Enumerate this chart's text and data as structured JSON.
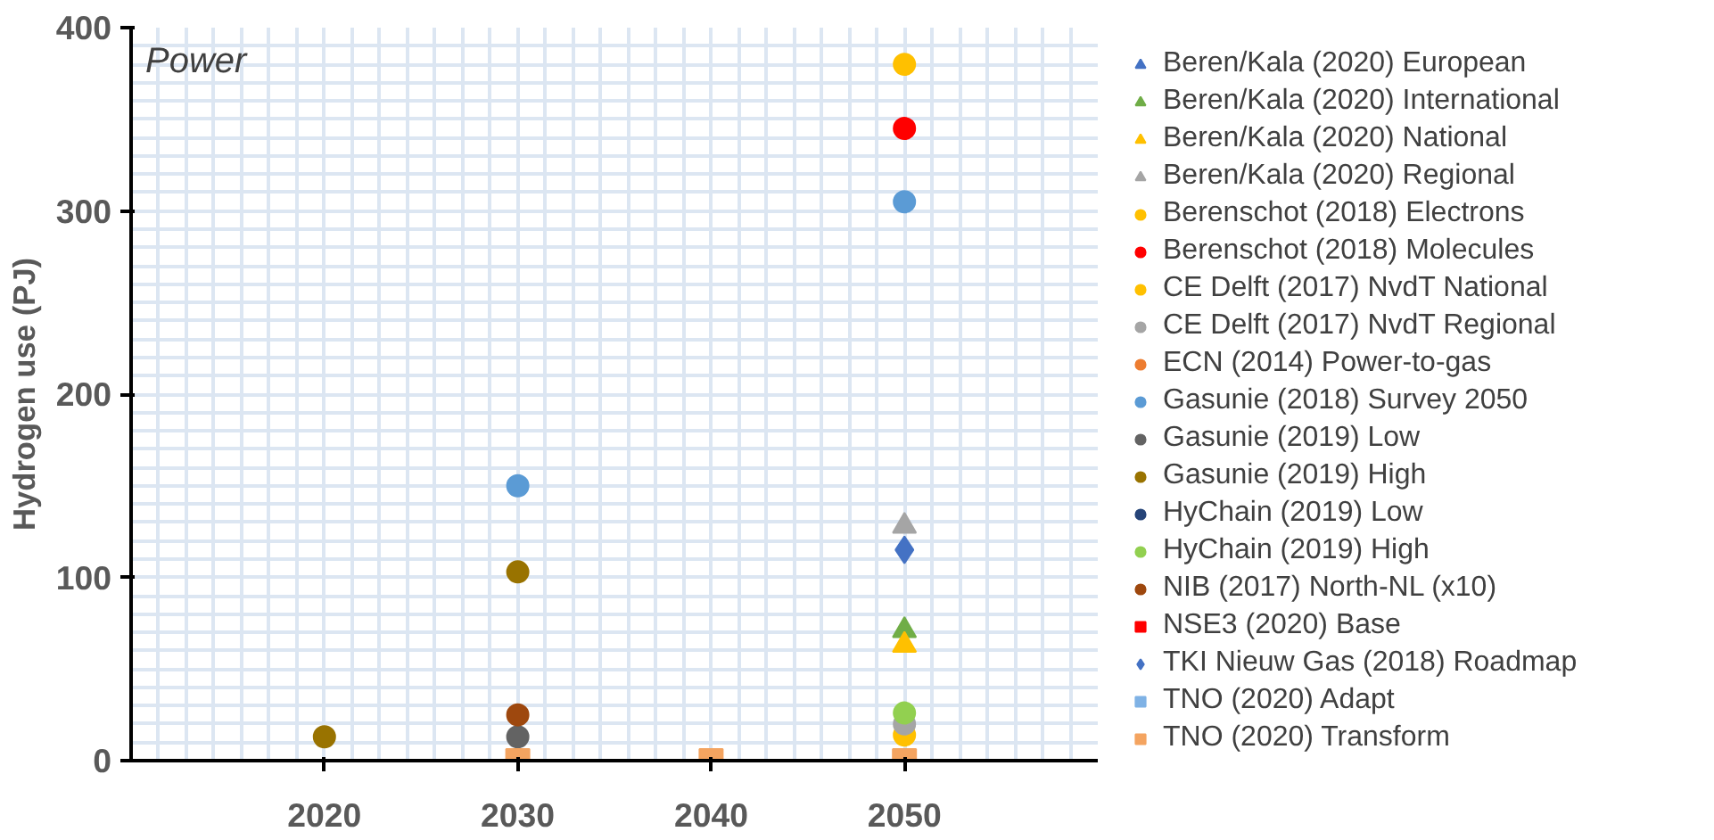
{
  "chart_data": {
    "type": "scatter",
    "ylabel": "Hydrogen use (PJ)",
    "annotations": [
      "Power"
    ],
    "x": [
      2020,
      2030,
      2040,
      2050
    ],
    "xlim": [
      2010,
      2060
    ],
    "xticks": [
      2020,
      2030,
      2040,
      2050
    ],
    "ylim": [
      0,
      400
    ],
    "yticks": [
      0,
      100,
      200,
      300,
      400
    ],
    "grid": true,
    "legend": "right",
    "series": [
      {
        "name": "Beren/Kala (2020) European",
        "color": "#4472c4",
        "marker": "triangle",
        "values": [
          null,
          null,
          null,
          null
        ]
      },
      {
        "name": "Beren/Kala (2020) International",
        "color": "#70ad47",
        "marker": "triangle",
        "values": [
          null,
          null,
          null,
          71
        ]
      },
      {
        "name": "Beren/Kala (2020) National",
        "color": "#ffc000",
        "marker": "triangle",
        "values": [
          null,
          null,
          null,
          63
        ]
      },
      {
        "name": "Beren/Kala (2020) Regional",
        "color": "#a5a5a5",
        "marker": "triangle",
        "values": [
          null,
          null,
          null,
          128
        ]
      },
      {
        "name": "Berenschot (2018) Electrons",
        "color": "#ffc000",
        "marker": "circle",
        "values": [
          null,
          null,
          null,
          380
        ]
      },
      {
        "name": "Berenschot (2018) Molecules",
        "color": "#ff0000",
        "marker": "circle",
        "values": [
          null,
          null,
          null,
          345
        ]
      },
      {
        "name": "CE Delft (2017) NvdT National",
        "color": "#ffc000",
        "marker": "circle",
        "values": [
          null,
          null,
          null,
          14
        ]
      },
      {
        "name": "CE Delft (2017) NvdT Regional",
        "color": "#a5a5a5",
        "marker": "circle",
        "values": [
          null,
          null,
          null,
          20
        ]
      },
      {
        "name": "ECN (2014) Power-to-gas",
        "color": "#ed7d31",
        "marker": "circle",
        "values": [
          null,
          null,
          null,
          null
        ]
      },
      {
        "name": "Gasunie (2018) Survey 2050",
        "color": "#5b9bd5",
        "marker": "circle",
        "values": [
          null,
          150,
          null,
          305
        ]
      },
      {
        "name": "Gasunie (2019) Low",
        "color": "#636363",
        "marker": "circle",
        "values": [
          null,
          13,
          null,
          null
        ]
      },
      {
        "name": "Gasunie (2019) High",
        "color": "#997300",
        "marker": "circle",
        "values": [
          13,
          103,
          null,
          null
        ]
      },
      {
        "name": "HyChain (2019) Low",
        "color": "#264478",
        "marker": "circle",
        "values": [
          null,
          null,
          null,
          null
        ]
      },
      {
        "name": "HyChain (2019) High",
        "color": "#92d050",
        "marker": "circle",
        "values": [
          null,
          null,
          null,
          26
        ]
      },
      {
        "name": "NIB (2017) North-NL (x10)",
        "color": "#9e480e",
        "marker": "circle",
        "values": [
          null,
          25,
          null,
          null
        ]
      },
      {
        "name": "NSE3 (2020) Base",
        "color": "#ff0000",
        "marker": "square",
        "values": [
          null,
          null,
          null,
          null
        ]
      },
      {
        "name": "TKI Nieuw Gas (2018) Roadmap",
        "color": "#4472c4",
        "marker": "diamond",
        "values": [
          null,
          null,
          null,
          115
        ]
      },
      {
        "name": "TNO (2020) Adapt",
        "color": "#7fb2e5",
        "marker": "square",
        "values": [
          null,
          null,
          null,
          null
        ]
      },
      {
        "name": "TNO (2020) Transform",
        "color": "#f4a460",
        "marker": "square",
        "values": [
          null,
          0,
          0,
          0
        ]
      }
    ]
  }
}
